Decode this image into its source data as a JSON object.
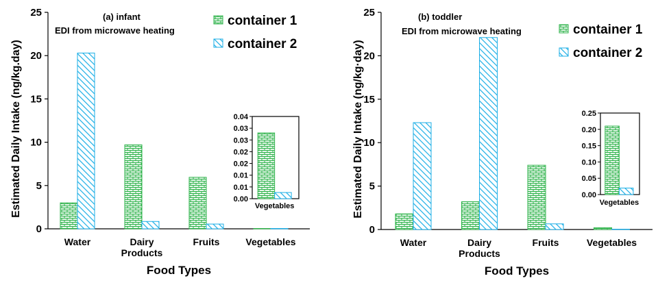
{
  "colors": {
    "container1": "#2eb34a",
    "container2": "#1aaee6",
    "container1_fill": "#e6f6ea",
    "container2_fill": "#ffffff"
  },
  "chart_data": [
    {
      "type": "bar",
      "title": "(a) infant",
      "subtitle": "EDI from microwave heating",
      "xlabel": "Food Types",
      "ylabel": "Estimated Daily Intake (ng/kg.day)",
      "categories": [
        [
          "Water"
        ],
        [
          "Dairy",
          "Products"
        ],
        [
          "Fruits"
        ],
        [
          "Vegetables"
        ]
      ],
      "ylim": [
        0,
        25
      ],
      "yticks": [
        "0",
        "5",
        "10",
        "15",
        "20",
        "25"
      ],
      "series": [
        {
          "name": "container 1",
          "values": [
            3.0,
            9.7,
            5.95,
            0.03
          ]
        },
        {
          "name": "container 2",
          "values": [
            20.3,
            0.85,
            0.55,
            0.003
          ]
        }
      ],
      "inset": {
        "category": "Vegetables",
        "ylim": [
          0,
          0.04
        ],
        "yticks": [
          "0.00",
          "0.01",
          "0.01",
          "0.02",
          "0.02",
          "0.03",
          "0.03",
          "0.04"
        ],
        "values": [
          0.032,
          0.003
        ]
      }
    },
    {
      "type": "bar",
      "title": "(b) toddler",
      "subtitle": "EDI from microwave heating",
      "xlabel": "Food Types",
      "ylabel": "Estimated Daily Intake (ng/kg·day)",
      "categories": [
        [
          "Water"
        ],
        [
          "Dairy",
          "Products"
        ],
        [
          "Fruits"
        ],
        [
          "Vegetables"
        ]
      ],
      "ylim": [
        0,
        25
      ],
      "yticks": [
        "0",
        "5",
        "10",
        "15",
        "20",
        "25"
      ],
      "series": [
        {
          "name": "container 1",
          "values": [
            1.8,
            3.2,
            7.4,
            0.21
          ]
        },
        {
          "name": "container 2",
          "values": [
            12.3,
            22.1,
            0.65,
            0.02
          ]
        }
      ],
      "inset": {
        "category": "Vegetables",
        "ylim": [
          0,
          0.25
        ],
        "yticks": [
          "0.00",
          "0.05",
          "0.10",
          "0.15",
          "0.20",
          "0.25"
        ],
        "values": [
          0.21,
          0.02
        ]
      }
    }
  ]
}
